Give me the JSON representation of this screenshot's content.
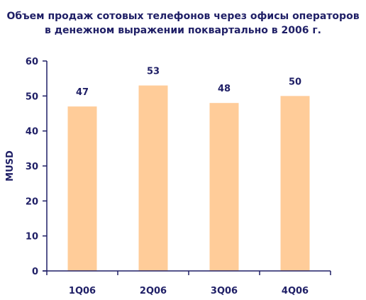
{
  "chart_data": {
    "type": "bar",
    "title_lines": [
      "Объем продаж сотовых телефонов через офисы операторов",
      "в денежном выражении поквартально в 2006 г."
    ],
    "categories": [
      "1Q06",
      "2Q06",
      "3Q06",
      "4Q06"
    ],
    "values": [
      47,
      53,
      48,
      50
    ],
    "data_labels": [
      "47",
      "53",
      "48",
      "50"
    ],
    "xlabel": "",
    "ylabel": "MUSD",
    "ylim": [
      0,
      60
    ],
    "yticks": [
      0,
      10,
      20,
      30,
      40,
      50,
      60
    ],
    "grid": false,
    "legend": "none",
    "bar_color": "#ffcc99",
    "axis_color": "#1f1f66",
    "text_color": "#1f1f66"
  }
}
